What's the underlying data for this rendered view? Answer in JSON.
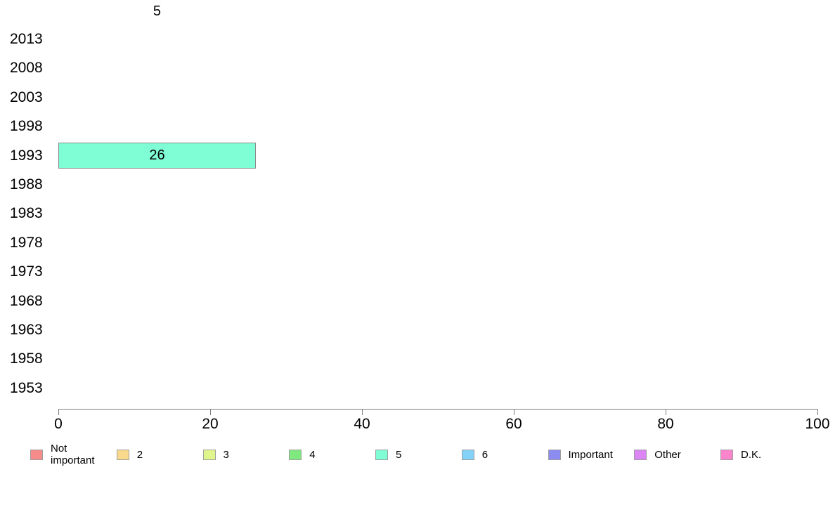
{
  "chart_data": {
    "type": "bar",
    "orientation": "horizontal",
    "title": "5",
    "series_label": "5",
    "categories": [
      "2013",
      "2008",
      "2003",
      "1998",
      "1993",
      "1988",
      "1983",
      "1978",
      "1973",
      "1968",
      "1963",
      "1958",
      "1953"
    ],
    "values": [
      null,
      null,
      null,
      null,
      26,
      null,
      null,
      null,
      null,
      null,
      null,
      null,
      null
    ],
    "value_labels_shown": true,
    "bar_label": "26",
    "x_ticks": [
      "0",
      "20",
      "40",
      "60",
      "80",
      "100"
    ],
    "x_tick_values": [
      0,
      20,
      40,
      60,
      80,
      100
    ],
    "xlim": [
      0,
      100
    ],
    "xlabel": "",
    "ylabel": "",
    "grid": false,
    "bar_color": "#7ffdd4",
    "bar_border_color": "#8a8a8a",
    "axis_color": "#7f7f7f",
    "legend_position": "bottom"
  },
  "legend": {
    "items": [
      {
        "label": "Not important",
        "color": "#f58b8b"
      },
      {
        "label": "2",
        "color": "#f9d98b"
      },
      {
        "label": "3",
        "color": "#dff68c"
      },
      {
        "label": "4",
        "color": "#7fe97f"
      },
      {
        "label": "5",
        "color": "#7ffdd4"
      },
      {
        "label": "6",
        "color": "#84d2f8"
      },
      {
        "label": "Important",
        "color": "#8b8bf0"
      },
      {
        "label": "Other",
        "color": "#dc85f5"
      },
      {
        "label": "D.K.",
        "color": "#fa85cd"
      }
    ]
  }
}
